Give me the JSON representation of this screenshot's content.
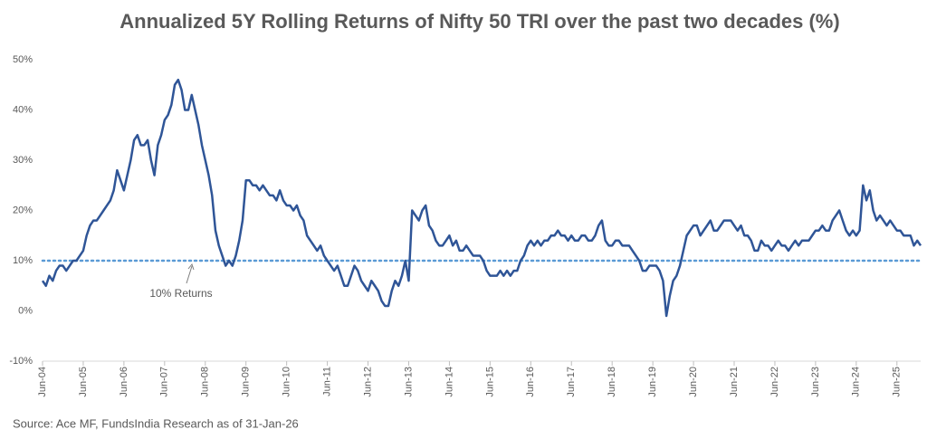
{
  "chart_data": {
    "type": "line",
    "title": "Annualized 5Y Rolling Returns of Nifty 50 TRI over the past two decades (%)",
    "source": "Source: Ace MF, FundsIndia Research as of 31-Jan-26",
    "x": [
      "2004-06",
      "2004-07",
      "2004-08",
      "2004-09",
      "2004-10",
      "2004-11",
      "2004-12",
      "2005-01",
      "2005-02",
      "2005-03",
      "2005-04",
      "2005-05",
      "2005-06",
      "2005-07",
      "2005-08",
      "2005-09",
      "2005-10",
      "2005-11",
      "2005-12",
      "2006-01",
      "2006-02",
      "2006-03",
      "2006-04",
      "2006-05",
      "2006-06",
      "2006-07",
      "2006-08",
      "2006-09",
      "2006-10",
      "2006-11",
      "2006-12",
      "2007-01",
      "2007-02",
      "2007-03",
      "2007-04",
      "2007-05",
      "2007-06",
      "2007-07",
      "2007-08",
      "2007-09",
      "2007-10",
      "2007-11",
      "2007-12",
      "2008-01",
      "2008-02",
      "2008-03",
      "2008-04",
      "2008-05",
      "2008-06",
      "2008-07",
      "2008-08",
      "2008-09",
      "2008-10",
      "2008-11",
      "2008-12",
      "2009-01",
      "2009-02",
      "2009-03",
      "2009-04",
      "2009-05",
      "2009-06",
      "2009-07",
      "2009-08",
      "2009-09",
      "2009-10",
      "2009-11",
      "2009-12",
      "2010-01",
      "2010-02",
      "2010-03",
      "2010-04",
      "2010-05",
      "2010-06",
      "2010-07",
      "2010-08",
      "2010-09",
      "2010-10",
      "2010-11",
      "2010-12",
      "2011-01",
      "2011-02",
      "2011-03",
      "2011-04",
      "2011-05",
      "2011-06",
      "2011-07",
      "2011-08",
      "2011-09",
      "2011-10",
      "2011-11",
      "2011-12",
      "2012-01",
      "2012-02",
      "2012-03",
      "2012-04",
      "2012-05",
      "2012-06",
      "2012-07",
      "2012-08",
      "2012-09",
      "2012-10",
      "2012-11",
      "2012-12",
      "2013-01",
      "2013-02",
      "2013-03",
      "2013-04",
      "2013-05",
      "2013-06",
      "2013-07",
      "2013-08",
      "2013-09",
      "2013-10",
      "2013-11",
      "2013-12",
      "2014-01",
      "2014-02",
      "2014-03",
      "2014-04",
      "2014-05",
      "2014-06",
      "2014-07",
      "2014-08",
      "2014-09",
      "2014-10",
      "2014-11",
      "2014-12",
      "2015-01",
      "2015-02",
      "2015-03",
      "2015-04",
      "2015-05",
      "2015-06",
      "2015-07",
      "2015-08",
      "2015-09",
      "2015-10",
      "2015-11",
      "2015-12",
      "2016-01",
      "2016-02",
      "2016-03",
      "2016-04",
      "2016-05",
      "2016-06",
      "2016-07",
      "2016-08",
      "2016-09",
      "2016-10",
      "2016-11",
      "2016-12",
      "2017-01",
      "2017-02",
      "2017-03",
      "2017-04",
      "2017-05",
      "2017-06",
      "2017-07",
      "2017-08",
      "2017-09",
      "2017-10",
      "2017-11",
      "2017-12",
      "2018-01",
      "2018-02",
      "2018-03",
      "2018-04",
      "2018-05",
      "2018-06",
      "2018-07",
      "2018-08",
      "2018-09",
      "2018-10",
      "2018-11",
      "2018-12",
      "2019-01",
      "2019-02",
      "2019-03",
      "2019-04",
      "2019-05",
      "2019-06",
      "2019-07",
      "2019-08",
      "2019-09",
      "2019-10",
      "2019-11",
      "2019-12",
      "2020-01",
      "2020-02",
      "2020-03",
      "2020-04",
      "2020-05",
      "2020-06",
      "2020-07",
      "2020-08",
      "2020-09",
      "2020-10",
      "2020-11",
      "2020-12",
      "2021-01",
      "2021-02",
      "2021-03",
      "2021-04",
      "2021-05",
      "2021-06",
      "2021-07",
      "2021-08",
      "2021-09",
      "2021-10",
      "2021-11",
      "2021-12",
      "2022-01",
      "2022-02",
      "2022-03",
      "2022-04",
      "2022-05",
      "2022-06",
      "2022-07",
      "2022-08",
      "2022-09",
      "2022-10",
      "2022-11",
      "2022-12",
      "2023-01",
      "2023-02",
      "2023-03",
      "2023-04",
      "2023-05",
      "2023-06",
      "2023-07",
      "2023-08",
      "2023-09",
      "2023-10",
      "2023-11",
      "2023-12",
      "2024-01",
      "2024-02",
      "2024-03",
      "2024-04",
      "2024-05",
      "2024-06",
      "2024-07",
      "2024-08",
      "2024-09",
      "2024-10",
      "2024-11",
      "2024-12",
      "2025-01",
      "2025-02",
      "2025-03",
      "2025-04",
      "2025-05",
      "2025-06",
      "2025-07",
      "2025-08",
      "2025-09",
      "2025-10",
      "2025-11",
      "2025-12",
      "2026-01"
    ],
    "series": [
      {
        "color": "#2f5597",
        "values": [
          6,
          5,
          7,
          6,
          8,
          9,
          9,
          8,
          9,
          10,
          10,
          11,
          12,
          15,
          17,
          18,
          18,
          19,
          20,
          21,
          22,
          24,
          28,
          26,
          24,
          27,
          30,
          34,
          35,
          33,
          33,
          34,
          30,
          27,
          33,
          35,
          38,
          39,
          41,
          45,
          46,
          44,
          40,
          40,
          43,
          40,
          37,
          33,
          30,
          27,
          23,
          16,
          13,
          11,
          9,
          10,
          9,
          11,
          14,
          18,
          26,
          26,
          25,
          25,
          24,
          25,
          24,
          23,
          23,
          22,
          24,
          22,
          21,
          21,
          20,
          21,
          19,
          18,
          15,
          14,
          13,
          12,
          13,
          11,
          10,
          9,
          8,
          9,
          7,
          5,
          5,
          7,
          9,
          8,
          6,
          5,
          4,
          6,
          5,
          4,
          2,
          1,
          1,
          4,
          6,
          5,
          7,
          10,
          6,
          20,
          19,
          18,
          20,
          21,
          17,
          16,
          14,
          13,
          13,
          14,
          15,
          13,
          14,
          12,
          12,
          13,
          12,
          11,
          11,
          11,
          10,
          8,
          7,
          7,
          7,
          8,
          7,
          8,
          7,
          8,
          8,
          10,
          11,
          13,
          14,
          13,
          14,
          13,
          14,
          14,
          15,
          15,
          16,
          15,
          15,
          14,
          15,
          14,
          14,
          15,
          15,
          14,
          14,
          15,
          17,
          18,
          14,
          13,
          13,
          14,
          14,
          13,
          13,
          13,
          12,
          11,
          10,
          8,
          8,
          9,
          9,
          9,
          8,
          6,
          -1,
          3,
          6,
          7,
          9,
          12,
          15,
          16,
          17,
          17,
          15,
          16,
          17,
          18,
          16,
          16,
          17,
          18,
          18,
          18,
          17,
          16,
          17,
          15,
          15,
          14,
          12,
          12,
          14,
          13,
          13,
          12,
          13,
          14,
          13,
          13,
          12,
          13,
          14,
          13,
          14,
          14,
          14,
          15,
          16,
          16,
          17,
          16,
          16,
          18,
          19,
          20,
          18,
          16,
          15,
          16,
          15,
          16,
          25,
          22,
          24,
          20,
          18,
          19,
          18,
          17,
          18,
          17,
          16,
          16,
          15,
          15,
          15,
          13,
          14,
          13
        ]
      }
    ],
    "reference_line": {
      "value": 10,
      "label": "10% Returns",
      "color": "#5b9bd5"
    },
    "xlim": [
      "2004-06",
      "2026-01"
    ],
    "xticks": [
      {
        "value": "2004-06",
        "label": "Jun-04"
      },
      {
        "value": "2005-06",
        "label": "Jun-05"
      },
      {
        "value": "2006-06",
        "label": "Jun-06"
      },
      {
        "value": "2007-06",
        "label": "Jun-07"
      },
      {
        "value": "2008-06",
        "label": "Jun-08"
      },
      {
        "value": "2009-06",
        "label": "Jun-09"
      },
      {
        "value": "2010-06",
        "label": "Jun-10"
      },
      {
        "value": "2011-06",
        "label": "Jun-11"
      },
      {
        "value": "2012-06",
        "label": "Jun-12"
      },
      {
        "value": "2013-06",
        "label": "Jun-13"
      },
      {
        "value": "2014-06",
        "label": "Jun-14"
      },
      {
        "value": "2015-06",
        "label": "Jun-15"
      },
      {
        "value": "2016-06",
        "label": "Jun-16"
      },
      {
        "value": "2017-06",
        "label": "Jun-17"
      },
      {
        "value": "2018-06",
        "label": "Jun-18"
      },
      {
        "value": "2019-06",
        "label": "Jun-19"
      },
      {
        "value": "2020-06",
        "label": "Jun-20"
      },
      {
        "value": "2021-06",
        "label": "Jun-21"
      },
      {
        "value": "2022-06",
        "label": "Jun-22"
      },
      {
        "value": "2023-06",
        "label": "Jun-23"
      },
      {
        "value": "2024-06",
        "label": "Jun-24"
      },
      {
        "value": "2025-06",
        "label": "Jun-25"
      }
    ],
    "ylim": [
      -10,
      50
    ],
    "yticks": [
      {
        "value": -10,
        "label": "-10%"
      },
      {
        "value": 0,
        "label": "0%"
      },
      {
        "value": 10,
        "label": "10%"
      },
      {
        "value": 20,
        "label": "20%"
      },
      {
        "value": 30,
        "label": "30%"
      },
      {
        "value": 40,
        "label": "40%"
      },
      {
        "value": 50,
        "label": "50%"
      }
    ],
    "grid": false
  }
}
